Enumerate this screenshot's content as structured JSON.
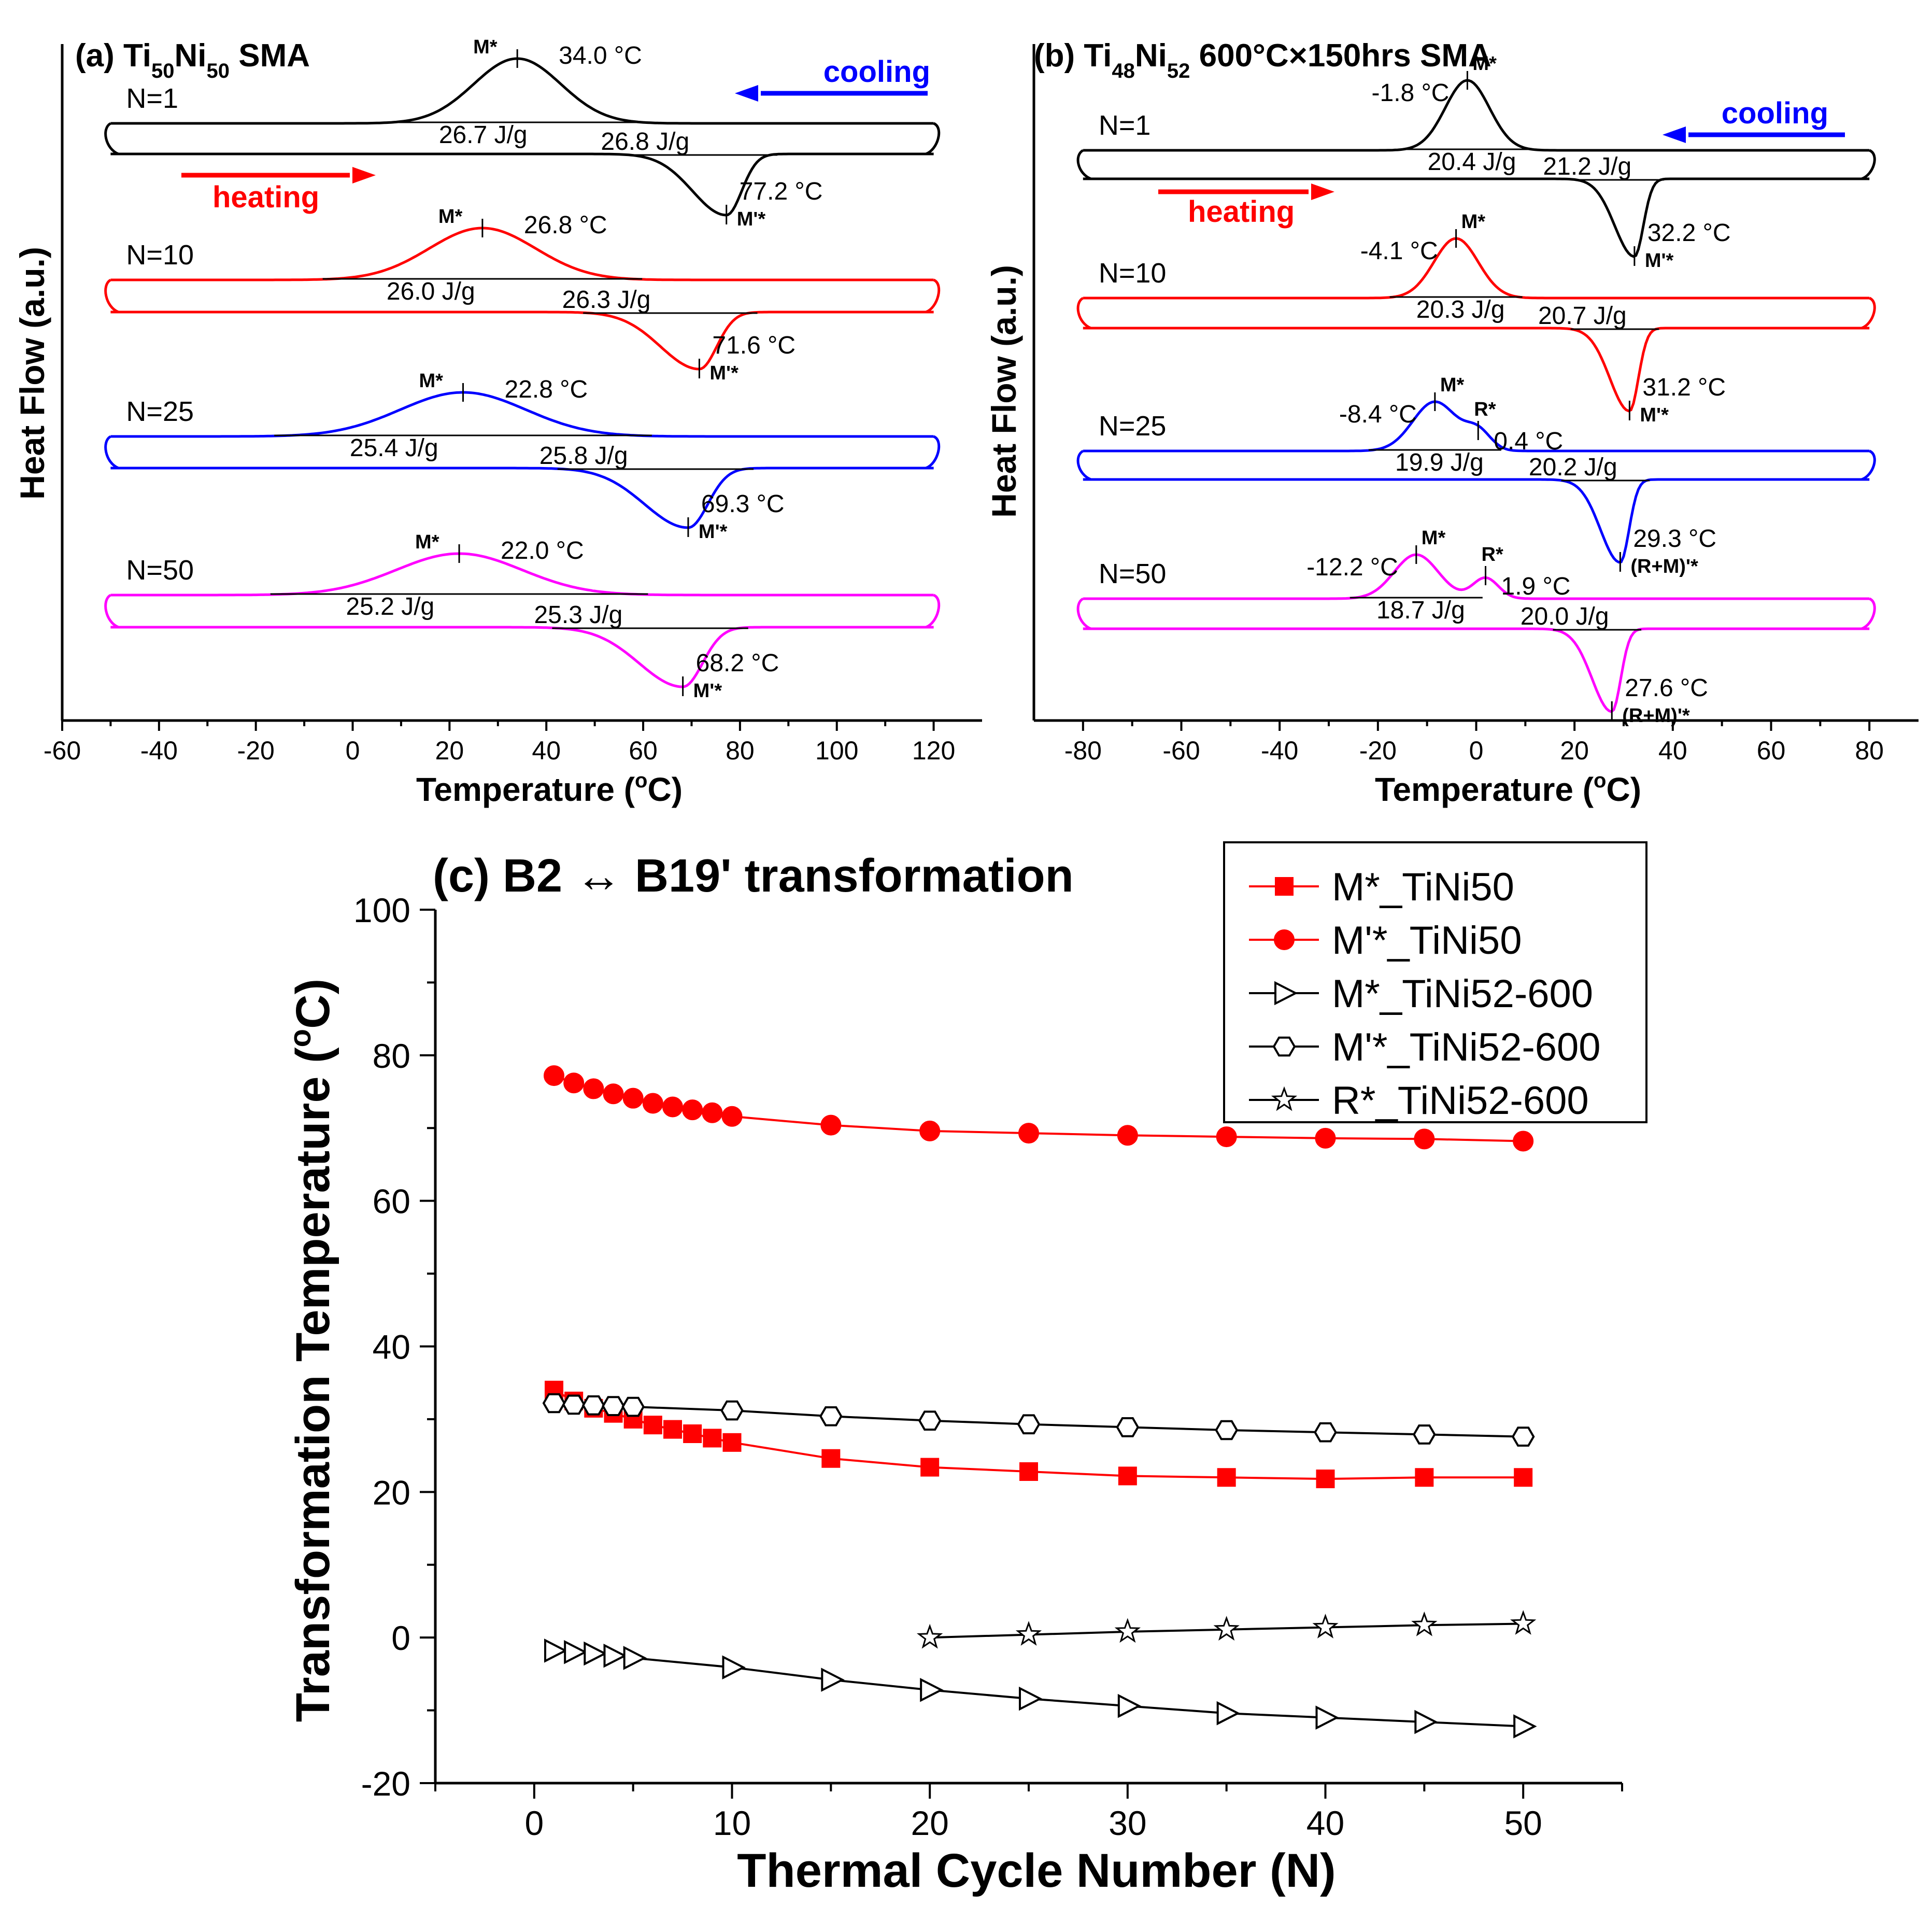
{
  "chart_data": [
    {
      "panel": "a",
      "type": "line",
      "title_prefix": "(a) Ti",
      "title_sub1": "50",
      "title_mid": "Ni",
      "title_sub2": "50",
      "title_suffix": " SMA",
      "xlabel": "Temperature (",
      "xlabel_sup": "o",
      "xlabel_end": "C)",
      "ylabel": "Heat Flow (a.u.)",
      "xlim": [
        -60,
        130
      ],
      "xticks": [
        "-60",
        "-40",
        "-20",
        "0",
        "20",
        "40",
        "60",
        "80",
        "100",
        "120"
      ],
      "xtick_values": [
        -60,
        -40,
        -20,
        0,
        20,
        40,
        60,
        80,
        100,
        120
      ],
      "x_range_curve": [
        -50,
        120
      ],
      "cooling_label": "cooling",
      "heating_label": "heating",
      "curves": [
        {
          "name": "N=1",
          "color": "#000000",
          "cool_peak_temp": 34.0,
          "cool_peak_label": "34.0 °C",
          "cool_marker": "M*",
          "cool_enthalpy": "26.7 J/g",
          "heat_peak_temp": 77.2,
          "heat_peak_label": "77.2 °C",
          "heat_marker": "M'*",
          "heat_enthalpy": "26.8 J/g",
          "cool_width": 9,
          "heat_width": 7
        },
        {
          "name": "N=10",
          "color": "#ff0000",
          "cool_peak_temp": 26.8,
          "cool_peak_label": "26.8 °C",
          "cool_marker": "M*",
          "cool_enthalpy": "26.0 J/g",
          "heat_peak_temp": 71.6,
          "heat_peak_label": "71.6 °C",
          "heat_marker": "M'*",
          "heat_enthalpy": "26.3 J/g",
          "cool_width": 11,
          "heat_width": 8
        },
        {
          "name": "N=25",
          "color": "#0000ff",
          "cool_peak_temp": 22.8,
          "cool_peak_label": "22.8 °C",
          "cool_marker": "M*",
          "cool_enthalpy": "25.4 J/g",
          "heat_peak_temp": 69.3,
          "heat_peak_label": "69.3 °C",
          "heat_marker": "M'*",
          "heat_enthalpy": "25.8 J/g",
          "cool_width": 13,
          "heat_width": 9
        },
        {
          "name": "N=50",
          "color": "#ff00ff",
          "cool_peak_temp": 22.0,
          "cool_peak_label": "22.0 °C",
          "cool_marker": "M*",
          "cool_enthalpy": "25.2 J/g",
          "heat_peak_temp": 68.2,
          "heat_peak_label": "68.2 °C",
          "heat_marker": "M'*",
          "heat_enthalpy": "25.3 J/g",
          "cool_width": 13,
          "heat_width": 9
        }
      ]
    },
    {
      "panel": "b",
      "type": "line",
      "title_prefix": "(b) Ti",
      "title_sub1": "48",
      "title_mid": "Ni",
      "title_sub2": "52",
      "title_suffix": " 600°C×150hrs SMA",
      "xlabel": "Temperature (",
      "xlabel_sup": "o",
      "xlabel_end": "C)",
      "ylabel": "Heat Flow (a.u.)",
      "xlim": [
        -90,
        90
      ],
      "xticks": [
        "-80",
        "-60",
        "-40",
        "-20",
        "0",
        "20",
        "40",
        "60",
        "80"
      ],
      "xtick_values": [
        -80,
        -60,
        -40,
        -20,
        0,
        20,
        40,
        60,
        80
      ],
      "x_range_curve": [
        -80,
        80
      ],
      "cooling_label": "cooling",
      "heating_label": "heating",
      "curves": [
        {
          "name": "N=1",
          "color": "#000000",
          "cool_peak_temp": -1.8,
          "cool_peak_label": "-1.8 °C",
          "cool_marker": "M*",
          "cool_enthalpy": "20.4 J/g",
          "heat_peak_temp": 32.2,
          "heat_peak_label": "32.2 °C",
          "heat_marker": "M'*",
          "heat_enthalpy": "21.2 J/g"
        },
        {
          "name": "N=10",
          "color": "#ff0000",
          "cool_peak_temp": -4.1,
          "cool_peak_label": "-4.1 °C",
          "cool_marker": "M*",
          "cool_enthalpy": "20.3 J/g",
          "heat_peak_temp": 31.2,
          "heat_peak_label": "31.2 °C",
          "heat_marker": "M'*",
          "heat_enthalpy": "20.7 J/g"
        },
        {
          "name": "N=25",
          "color": "#0000ff",
          "cool_peak_temp": -8.4,
          "cool_peak_label": "-8.4 °C",
          "cool_marker": "M*",
          "r_peak_temp": 0.4,
          "r_peak_label": "0.4 °C",
          "r_marker": "R*",
          "cool_enthalpy": "19.9 J/g",
          "heat_peak_temp": 29.3,
          "heat_peak_label": "29.3 °C",
          "heat_marker": "(R+M)'*",
          "heat_enthalpy": "20.2 J/g"
        },
        {
          "name": "N=50",
          "color": "#ff00ff",
          "cool_peak_temp": -12.2,
          "cool_peak_label": "-12.2 °C",
          "cool_marker": "M*",
          "r_peak_temp": 1.9,
          "r_peak_label": "1.9 °C",
          "r_marker": "R*",
          "cool_enthalpy": "18.7 J/g",
          "heat_peak_temp": 27.6,
          "heat_peak_label": "27.6 °C",
          "heat_marker": "(R+M)'*",
          "heat_enthalpy": "20.0 J/g"
        }
      ]
    },
    {
      "panel": "c",
      "type": "line",
      "title": "(c) B2 ↔ B19' transformation",
      "xlabel": "Thermal Cycle Number (N)",
      "ylabel": "Transformation Temperature (",
      "ylabel_sup": "o",
      "ylabel_end": "C)",
      "xlim": [
        -5,
        55
      ],
      "ylim": [
        -20,
        100
      ],
      "xticks": [
        "0",
        "10",
        "20",
        "30",
        "40",
        "50"
      ],
      "xtick_values": [
        0,
        10,
        20,
        30,
        40,
        50
      ],
      "yticks": [
        "-20",
        "0",
        "20",
        "40",
        "60",
        "80",
        "100"
      ],
      "ytick_values": [
        -20,
        0,
        20,
        40,
        60,
        80,
        100
      ],
      "series": [
        {
          "name": "M*_TiNi50",
          "marker": "square",
          "filled": true,
          "color": "#ff0000",
          "x": [
            1,
            2,
            3,
            4,
            5,
            6,
            7,
            8,
            9,
            10,
            15,
            20,
            25,
            30,
            35,
            40,
            45,
            50
          ],
          "y": [
            34.0,
            32.5,
            31.5,
            30.8,
            30.0,
            29.2,
            28.6,
            28.0,
            27.4,
            26.8,
            24.6,
            23.4,
            22.8,
            22.2,
            22.0,
            21.8,
            22.0,
            22.0
          ]
        },
        {
          "name": "M'*_TiNi50",
          "marker": "circle",
          "filled": true,
          "color": "#ff0000",
          "x": [
            1,
            2,
            3,
            4,
            5,
            6,
            7,
            8,
            9,
            10,
            15,
            20,
            25,
            30,
            35,
            40,
            45,
            50
          ],
          "y": [
            77.2,
            76.2,
            75.4,
            74.7,
            74.1,
            73.4,
            72.9,
            72.5,
            72.1,
            71.6,
            70.4,
            69.6,
            69.3,
            69.0,
            68.8,
            68.6,
            68.5,
            68.2
          ]
        },
        {
          "name": "M*_TiNi52-600",
          "marker": "triangle-right",
          "filled": false,
          "color": "#000000",
          "x": [
            1,
            2,
            3,
            4,
            5,
            10,
            15,
            20,
            25,
            30,
            35,
            40,
            45,
            50
          ],
          "y": [
            -1.8,
            -2.0,
            -2.2,
            -2.5,
            -2.8,
            -4.1,
            -5.8,
            -7.2,
            -8.4,
            -9.4,
            -10.4,
            -11.0,
            -11.6,
            -12.2
          ]
        },
        {
          "name": "M'*_TiNi52-600",
          "marker": "hexagon",
          "filled": false,
          "color": "#000000",
          "x": [
            1,
            2,
            3,
            4,
            5,
            10,
            15,
            20,
            25,
            30,
            35,
            40,
            45,
            50
          ],
          "y": [
            32.2,
            32.0,
            31.9,
            31.8,
            31.7,
            31.2,
            30.4,
            29.8,
            29.3,
            28.9,
            28.5,
            28.2,
            27.9,
            27.6
          ]
        },
        {
          "name": "R*_TiNi52-600",
          "marker": "star",
          "filled": false,
          "color": "#000000",
          "x": [
            20,
            25,
            30,
            35,
            40,
            45,
            50
          ],
          "y": [
            0.0,
            0.4,
            0.8,
            1.1,
            1.4,
            1.7,
            1.9
          ]
        }
      ]
    }
  ]
}
